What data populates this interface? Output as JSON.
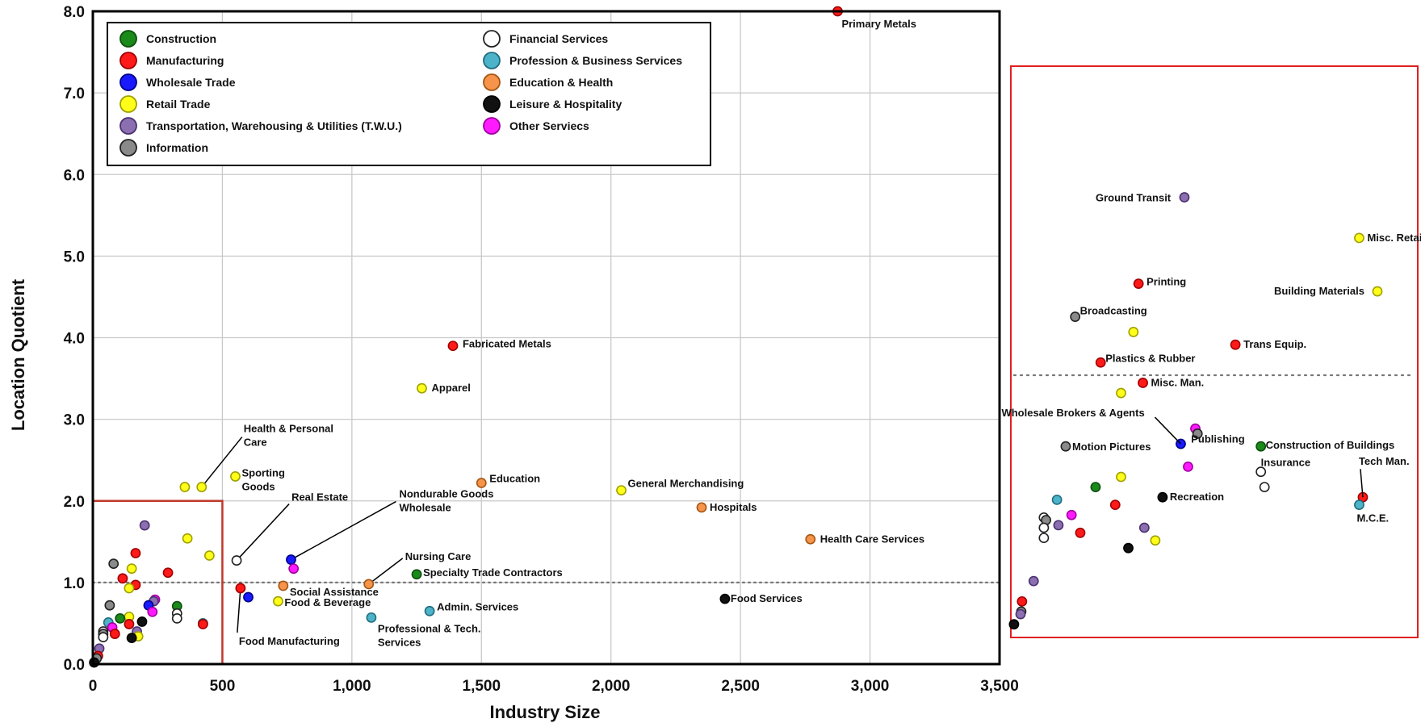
{
  "chart_data": {
    "type": "scatter",
    "xlabel": "Industry Size",
    "ylabel": "Location Quotient",
    "xlim": [
      0,
      3500
    ],
    "ylim": [
      0,
      8
    ],
    "x_ticks": [
      "0",
      "500",
      "1,000",
      "1,500",
      "2,000",
      "2,500",
      "3,000",
      "3,500"
    ],
    "y_ticks": [
      "0.0",
      "1.0",
      "2.0",
      "3.0",
      "4.0",
      "5.0",
      "6.0",
      "7.0",
      "8.0"
    ],
    "grid": true,
    "legend_placement": "top-left",
    "reference_line_y": 1.0,
    "series": [
      {
        "name": "Construction",
        "color": "#1a8a1a",
        "stroke": "#0b4f0b"
      },
      {
        "name": "Manufacturing",
        "color": "#ff1a1a",
        "stroke": "#a00000"
      },
      {
        "name": "Wholesale Trade",
        "color": "#1a1aff",
        "stroke": "#00008a"
      },
      {
        "name": "Retail Trade",
        "color": "#ffff1a",
        "stroke": "#a0a000"
      },
      {
        "name": "Transportation, Warehousing & Utilities (T.W.U.)",
        "color": "#8c6fb0",
        "stroke": "#4a3270"
      },
      {
        "name": "Information",
        "color": "#8a8a8a",
        "stroke": "#222222"
      },
      {
        "name": "Financial Services",
        "color": "#ffffff",
        "stroke": "#222222"
      },
      {
        "name": "Profession & Business Services",
        "color": "#4db3c9",
        "stroke": "#1f6d7e"
      },
      {
        "name": "Education & Health",
        "color": "#f5944a",
        "stroke": "#a55512"
      },
      {
        "name": "Leisure & Hospitality",
        "color": "#111111",
        "stroke": "#000000"
      },
      {
        "name": "Other Serviecs",
        "color": "#ff1aff",
        "stroke": "#a000a0"
      }
    ],
    "points": [
      {
        "s": 1,
        "x": 2875,
        "y": 8.0,
        "label": "Primary Metals"
      },
      {
        "s": 1,
        "x": 1390,
        "y": 3.9,
        "label": "Fabricated Metals"
      },
      {
        "s": 3,
        "x": 1270,
        "y": 3.38,
        "label": "Apparel"
      },
      {
        "s": 8,
        "x": 1500,
        "y": 2.22,
        "label": "Education"
      },
      {
        "s": 3,
        "x": 2040,
        "y": 2.13,
        "label": "General Merchandising"
      },
      {
        "s": 8,
        "x": 2350,
        "y": 1.92,
        "label": "Hospitals"
      },
      {
        "s": 8,
        "x": 2770,
        "y": 1.53,
        "label": "Health Care Services"
      },
      {
        "s": 9,
        "x": 2440,
        "y": 0.8,
        "label": "Food Services"
      },
      {
        "s": 3,
        "x": 550,
        "y": 2.3,
        "label": "Sporting Goods"
      },
      {
        "s": 3,
        "x": 420,
        "y": 2.17,
        "label": "Health & Personal Care"
      },
      {
        "s": 3,
        "x": 355,
        "y": 2.17
      },
      {
        "s": 6,
        "x": 555,
        "y": 1.27,
        "label": "Real Estate"
      },
      {
        "s": 2,
        "x": 765,
        "y": 1.28,
        "label": "Nondurable Goods Wholesale"
      },
      {
        "s": 10,
        "x": 775,
        "y": 1.17
      },
      {
        "s": 8,
        "x": 1065,
        "y": 0.98,
        "label": "Nursing Care"
      },
      {
        "s": 0,
        "x": 1250,
        "y": 1.1,
        "label": "Specialty Trade Contractors"
      },
      {
        "s": 8,
        "x": 735,
        "y": 0.96,
        "label": "Social Assistance"
      },
      {
        "s": 3,
        "x": 715,
        "y": 0.77,
        "label": "Food & Beverage"
      },
      {
        "s": 7,
        "x": 1300,
        "y": 0.65,
        "label": "Admin. Services"
      },
      {
        "s": 7,
        "x": 1075,
        "y": 0.57,
        "label": "Professional & Tech. Services"
      },
      {
        "s": 1,
        "x": 570,
        "y": 0.93,
        "label": "Food Manufacturing"
      },
      {
        "s": 2,
        "x": 600,
        "y": 0.82
      },
      {
        "s": 4,
        "x": 200,
        "y": 1.7
      },
      {
        "s": 3,
        "x": 365,
        "y": 1.54
      },
      {
        "s": 3,
        "x": 450,
        "y": 1.33
      },
      {
        "s": 1,
        "x": 165,
        "y": 1.36
      },
      {
        "s": 3,
        "x": 150,
        "y": 1.17
      },
      {
        "s": 5,
        "x": 80,
        "y": 1.23
      },
      {
        "s": 1,
        "x": 290,
        "y": 1.12
      },
      {
        "s": 1,
        "x": 115,
        "y": 1.05
      },
      {
        "s": 1,
        "x": 165,
        "y": 0.97
      },
      {
        "s": 3,
        "x": 140,
        "y": 0.93
      },
      {
        "s": 10,
        "x": 240,
        "y": 0.79
      },
      {
        "s": 4,
        "x": 235,
        "y": 0.77
      },
      {
        "s": 5,
        "x": 65,
        "y": 0.72
      },
      {
        "s": 2,
        "x": 215,
        "y": 0.72
      },
      {
        "s": 0,
        "x": 325,
        "y": 0.71
      },
      {
        "s": 10,
        "x": 230,
        "y": 0.64
      },
      {
        "s": 6,
        "x": 325,
        "y": 0.62
      },
      {
        "s": 6,
        "x": 325,
        "y": 0.56
      },
      {
        "s": 3,
        "x": 140,
        "y": 0.58
      },
      {
        "s": 0,
        "x": 105,
        "y": 0.56
      },
      {
        "s": 1,
        "x": 140,
        "y": 0.49
      },
      {
        "s": 9,
        "x": 190,
        "y": 0.52
      },
      {
        "s": 7,
        "x": 60,
        "y": 0.51
      },
      {
        "s": 7,
        "x": 425,
        "y": 0.5
      },
      {
        "s": 1,
        "x": 425,
        "y": 0.49
      },
      {
        "s": 10,
        "x": 75,
        "y": 0.45
      },
      {
        "s": 4,
        "x": 170,
        "y": 0.4
      },
      {
        "s": 6,
        "x": 40,
        "y": 0.4
      },
      {
        "s": 5,
        "x": 40,
        "y": 0.37
      },
      {
        "s": 1,
        "x": 85,
        "y": 0.37
      },
      {
        "s": 3,
        "x": 175,
        "y": 0.34
      },
      {
        "s": 9,
        "x": 150,
        "y": 0.32
      },
      {
        "s": 6,
        "x": 40,
        "y": 0.33
      },
      {
        "s": 4,
        "x": 25,
        "y": 0.19
      },
      {
        "s": 1,
        "x": 20,
        "y": 0.1
      },
      {
        "s": 5,
        "x": 15,
        "y": 0.07
      },
      {
        "s": 9,
        "x": 5,
        "y": 0.02
      }
    ],
    "inset": {
      "xlim": [
        0,
        500
      ],
      "ylim": [
        0,
        2.0
      ],
      "points": [
        {
          "s": 4,
          "x": 235,
          "y": 1.7,
          "label": "Ground Transit"
        },
        {
          "s": 3,
          "x": 475,
          "y": 1.54,
          "label": "Misc. Retail"
        },
        {
          "s": 1,
          "x": 172,
          "y": 1.36,
          "label": "Printing"
        },
        {
          "s": 3,
          "x": 500,
          "y": 1.33,
          "label": "Building Materials"
        },
        {
          "s": 5,
          "x": 85,
          "y": 1.23,
          "label": "Broadcasting"
        },
        {
          "s": 3,
          "x": 165,
          "y": 1.17
        },
        {
          "s": 1,
          "x": 305,
          "y": 1.12,
          "label": "Trans Equip."
        },
        {
          "s": 1,
          "x": 120,
          "y": 1.05,
          "label": "Plastics & Rubber"
        },
        {
          "s": 1,
          "x": 178,
          "y": 0.97,
          "label": "Misc. Man."
        },
        {
          "s": 3,
          "x": 148,
          "y": 0.93
        },
        {
          "s": 10,
          "x": 250,
          "y": 0.79
        },
        {
          "s": 5,
          "x": 253,
          "y": 0.77,
          "label": "Publishing"
        },
        {
          "s": 2,
          "x": 230,
          "y": 0.73,
          "label": "Wholesale Brokers & Agents"
        },
        {
          "s": 5,
          "x": 72,
          "y": 0.72,
          "label": "Motion Pictures"
        },
        {
          "s": 0,
          "x": 340,
          "y": 0.72,
          "label": "Construction of Buildings"
        },
        {
          "s": 10,
          "x": 240,
          "y": 0.64
        },
        {
          "s": 6,
          "x": 340,
          "y": 0.62,
          "label": "Insurance"
        },
        {
          "s": 3,
          "x": 148,
          "y": 0.6
        },
        {
          "s": 6,
          "x": 345,
          "y": 0.56
        },
        {
          "s": 0,
          "x": 113,
          "y": 0.56
        },
        {
          "s": 1,
          "x": 480,
          "y": 0.52,
          "label": "Tech Man."
        },
        {
          "s": 9,
          "x": 205,
          "y": 0.52,
          "label": "Recreation"
        },
        {
          "s": 7,
          "x": 60,
          "y": 0.51
        },
        {
          "s": 1,
          "x": 140,
          "y": 0.49
        },
        {
          "s": 7,
          "x": 475,
          "y": 0.49,
          "label": "M.C.E."
        },
        {
          "s": 10,
          "x": 80,
          "y": 0.45
        },
        {
          "s": 6,
          "x": 42,
          "y": 0.44
        },
        {
          "s": 5,
          "x": 45,
          "y": 0.43
        },
        {
          "s": 4,
          "x": 62,
          "y": 0.41
        },
        {
          "s": 4,
          "x": 180,
          "y": 0.4
        },
        {
          "s": 6,
          "x": 42,
          "y": 0.4
        },
        {
          "s": 1,
          "x": 92,
          "y": 0.38
        },
        {
          "s": 3,
          "x": 195,
          "y": 0.35
        },
        {
          "s": 6,
          "x": 42,
          "y": 0.36
        },
        {
          "s": 9,
          "x": 158,
          "y": 0.32
        },
        {
          "s": 4,
          "x": 28,
          "y": 0.19
        },
        {
          "s": 1,
          "x": 12,
          "y": 0.11
        },
        {
          "s": 5,
          "x": 11,
          "y": 0.07
        },
        {
          "s": 4,
          "x": 10,
          "y": 0.06
        },
        {
          "s": 9,
          "x": 1,
          "y": 0.02
        }
      ]
    }
  }
}
